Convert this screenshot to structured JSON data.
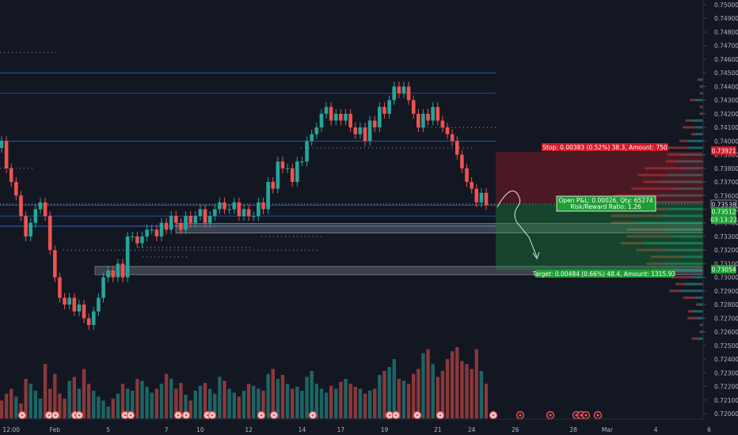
{
  "chart_data": {
    "type": "candlestick",
    "ylim": [
      0.7195,
      0.7505
    ],
    "y_ticks": [
      "0.75000",
      "0.74900",
      "0.74800",
      "0.74700",
      "0.74600",
      "0.74500",
      "0.74400",
      "0.74300",
      "0.74200",
      "0.74100",
      "0.74000",
      "0.73900",
      "0.73800",
      "0.73700",
      "0.73600",
      "0.73500",
      "0.73400",
      "0.73300",
      "0.73200",
      "0.73100",
      "0.73000",
      "0.72900",
      "0.72800",
      "0.72700",
      "0.72600",
      "0.72500",
      "0.72400",
      "0.72300",
      "0.72200",
      "0.72100",
      "0.72000"
    ],
    "x_ticks": [
      {
        "label": "12:00",
        "slot": 2
      },
      {
        "label": "Feb",
        "slot": 11
      },
      {
        "label": "5",
        "slot": 22
      },
      {
        "label": "7",
        "slot": 34
      },
      {
        "label": "10",
        "slot": 41
      },
      {
        "label": "12",
        "slot": 51
      },
      {
        "label": "14",
        "slot": 62
      },
      {
        "label": "17",
        "slot": 70
      },
      {
        "label": "19",
        "slot": 79
      },
      {
        "label": "21",
        "slot": 90
      },
      {
        "label": "24",
        "slot": 97
      },
      {
        "label": "26",
        "slot": 106
      },
      {
        "label": "28",
        "slot": 118
      },
      {
        "label": "Mar",
        "slot": 125
      },
      {
        "label": "4",
        "slot": 135
      },
      {
        "label": "6",
        "slot": 146
      }
    ],
    "closes": [
      0.74,
      0.738,
      0.737,
      0.736,
      0.7345,
      0.733,
      0.734,
      0.735,
      0.7355,
      0.7345,
      0.732,
      0.73,
      0.7285,
      0.728,
      0.7285,
      0.7275,
      0.728,
      0.727,
      0.7265,
      0.7275,
      0.7285,
      0.73,
      0.7305,
      0.73,
      0.731,
      0.73,
      0.733,
      0.733,
      0.7325,
      0.733,
      0.7335,
      0.7335,
      0.733,
      0.734,
      0.7335,
      0.7345,
      0.734,
      0.7335,
      0.7345,
      0.734,
      0.7345,
      0.735,
      0.734,
      0.7345,
      0.735,
      0.7355,
      0.735,
      0.735,
      0.7355,
      0.7345,
      0.735,
      0.7345,
      0.7345,
      0.7355,
      0.735,
      0.737,
      0.7365,
      0.7385,
      0.738,
      0.738,
      0.737,
      0.7385,
      0.7385,
      0.74,
      0.7405,
      0.741,
      0.742,
      0.7425,
      0.7415,
      0.742,
      0.7415,
      0.742,
      0.741,
      0.7405,
      0.741,
      0.74,
      0.7415,
      0.741,
      0.7425,
      0.742,
      0.743,
      0.744,
      0.7435,
      0.744,
      0.743,
      0.742,
      0.741,
      0.742,
      0.7415,
      0.7425,
      0.7415,
      0.741,
      0.7405,
      0.74,
      0.739,
      0.738,
      0.737,
      0.7365,
      0.7355,
      0.7362,
      0.7353
    ],
    "volume_max": 100,
    "volumes": [
      18,
      25,
      30,
      22,
      15,
      40,
      35,
      28,
      20,
      55,
      30,
      45,
      25,
      20,
      38,
      42,
      30,
      50,
      35,
      28,
      22,
      18,
      12,
      20,
      25,
      35,
      30,
      28,
      40,
      38,
      32,
      26,
      30,
      35,
      45,
      40,
      30,
      36,
      24,
      18,
      28,
      33,
      36,
      30,
      25,
      42,
      38,
      30,
      26,
      22,
      28,
      35,
      33,
      30,
      28,
      45,
      50,
      40,
      44,
      35,
      30,
      32,
      28,
      42,
      48,
      35,
      30,
      26,
      33,
      30,
      37,
      40,
      35,
      32,
      30,
      25,
      28,
      30,
      44,
      48,
      52,
      60,
      40,
      38,
      35,
      45,
      50,
      66,
      70,
      55,
      42,
      48,
      60,
      68,
      72,
      58,
      55,
      50,
      70,
      48,
      35
    ],
    "volume_colors": [
      "down",
      "down",
      "down",
      "up",
      "down",
      "down",
      "up",
      "up",
      "up",
      "down",
      "down",
      "down",
      "down",
      "down",
      "up",
      "down",
      "up",
      "down",
      "down",
      "up",
      "up",
      "up",
      "up",
      "down",
      "up",
      "down",
      "up",
      "up",
      "down",
      "up",
      "up",
      "up",
      "down",
      "up",
      "down",
      "up",
      "down",
      "down",
      "up",
      "down",
      "up",
      "up",
      "down",
      "up",
      "up",
      "up",
      "down",
      "up",
      "up",
      "down",
      "up",
      "down",
      "up",
      "up",
      "down",
      "up",
      "down",
      "up",
      "down",
      "up",
      "down",
      "up",
      "up",
      "up",
      "up",
      "up",
      "up",
      "up",
      "down",
      "up",
      "down",
      "up",
      "down",
      "down",
      "up",
      "down",
      "up",
      "down",
      "up",
      "down",
      "up",
      "up",
      "down",
      "up",
      "down",
      "down",
      "down",
      "up",
      "down",
      "up",
      "down",
      "down",
      "down",
      "down",
      "down",
      "down",
      "down",
      "down",
      "down",
      "up",
      "down"
    ]
  },
  "position": {
    "stop_price_label": "0.73921",
    "entry_price_label": "0.73538",
    "current_price_label": "0.73512",
    "countdown_label": "03:13:22",
    "target_price_label": "0.73054",
    "stop_text": "Stop: 0.00383 (0.52%) 38.3, Amount: 750",
    "pnl_text": "Open P&L: 0.00026, Qty: 65274",
    "rr_text": "Risk/Reward Ratio: 1.26",
    "target_text": "Target: 0.00484 (0.66%) 48.4, Amount: 1315.93",
    "stop_price": 0.73921,
    "entry_price": 0.73538,
    "target_price": 0.73054
  },
  "levels": [
    0.745,
    0.7435,
    0.74,
    0.7353,
    0.7345,
    0.73375,
    0.73375
  ],
  "zones": [
    [
      0.73325,
      0.73395
    ],
    [
      0.7302,
      0.7308
    ]
  ],
  "dotted_levels": [
    0.7465,
    0.738,
    0.733,
    0.7322,
    0.732,
    0.7315,
    0.7395,
    0.741
  ],
  "colors": {
    "background": "#131722",
    "up": "#26a69a",
    "down": "#ef5350",
    "stop_zone": "rgba(180,30,40,0.35)",
    "target_zone": "rgba(30,150,60,0.35)",
    "label_red": "#d11a2a",
    "label_green": "#1e9e34",
    "level_line": "#2a73d8",
    "zone_fill": "rgba(255,255,255,0.18)",
    "axis_text": "#b2b5be"
  }
}
